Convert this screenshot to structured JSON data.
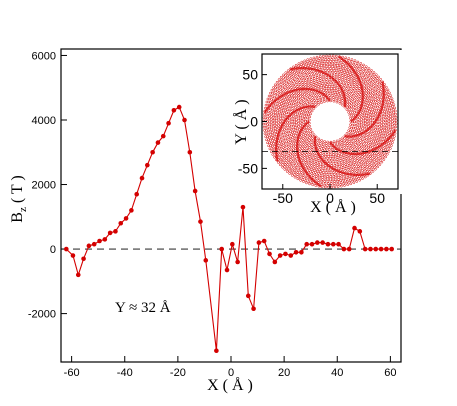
{
  "chart_data": [
    {
      "type": "line",
      "xlabel": "X ( Å )",
      "ylabel_main": "B",
      "ylabel_sub": "z",
      "ylabel_unit": " ( T )",
      "xlim": [
        -64,
        64
      ],
      "ylim": [
        -3500,
        6200
      ],
      "xticks": [
        -60,
        -40,
        -20,
        0,
        20,
        40,
        60
      ],
      "yticks": [
        -2000,
        0,
        2000,
        4000,
        6000
      ],
      "annotation": "Y ≈ 32 Å",
      "reference_line_y": 0,
      "color": "#d40000",
      "x": [
        -62,
        -59.5,
        -57.5,
        -55.5,
        -53.5,
        -51.5,
        -49.5,
        -47.5,
        -45.5,
        -43.5,
        -41.5,
        -39.5,
        -37.5,
        -35.5,
        -33.5,
        -31.5,
        -29.5,
        -27.5,
        -25.5,
        -23.5,
        -21.5,
        -19.5,
        -17.5,
        -15.5,
        -13.5,
        -11.5,
        -9.5,
        -5.5,
        -3.5,
        -1.5,
        0.5,
        2.5,
        4.5,
        6.5,
        8.5,
        10.5,
        12.5,
        14.5,
        16.5,
        18.5,
        20.5,
        22.5,
        24.5,
        26.5,
        28.5,
        30.5,
        32.5,
        34.5,
        36.5,
        38.5,
        40.5,
        42.5,
        44.5,
        46.5,
        48.5,
        50.5,
        52.5,
        54.5,
        56.5,
        58.5,
        60.5
      ],
      "y": [
        0,
        -200,
        -800,
        -300,
        100,
        150,
        250,
        300,
        500,
        550,
        800,
        950,
        1200,
        1700,
        2200,
        2600,
        3000,
        3300,
        3500,
        3900,
        4300,
        4400,
        4000,
        3000,
        1800,
        850,
        -350,
        -3150,
        0,
        -650,
        150,
        -400,
        1300,
        -1450,
        -1850,
        200,
        250,
        -150,
        -400,
        -200,
        -150,
        -200,
        -100,
        -100,
        150,
        150,
        200,
        200,
        150,
        150,
        150,
        0,
        0,
        650,
        550,
        0,
        0,
        0,
        0,
        0,
        0
      ]
    },
    {
      "type": "scatter",
      "xlabel": "X ( Å )",
      "ylabel": "Y ( Å )",
      "xlim": [
        -72,
        72
      ],
      "ylim": [
        -72,
        72
      ],
      "xticks": [
        -50,
        0,
        50
      ],
      "yticks": [
        -50,
        0,
        50
      ],
      "ring_inner_radius": 22,
      "ring_outer_radius": 70,
      "reference_line_y": -32,
      "color": "#d40000"
    }
  ]
}
